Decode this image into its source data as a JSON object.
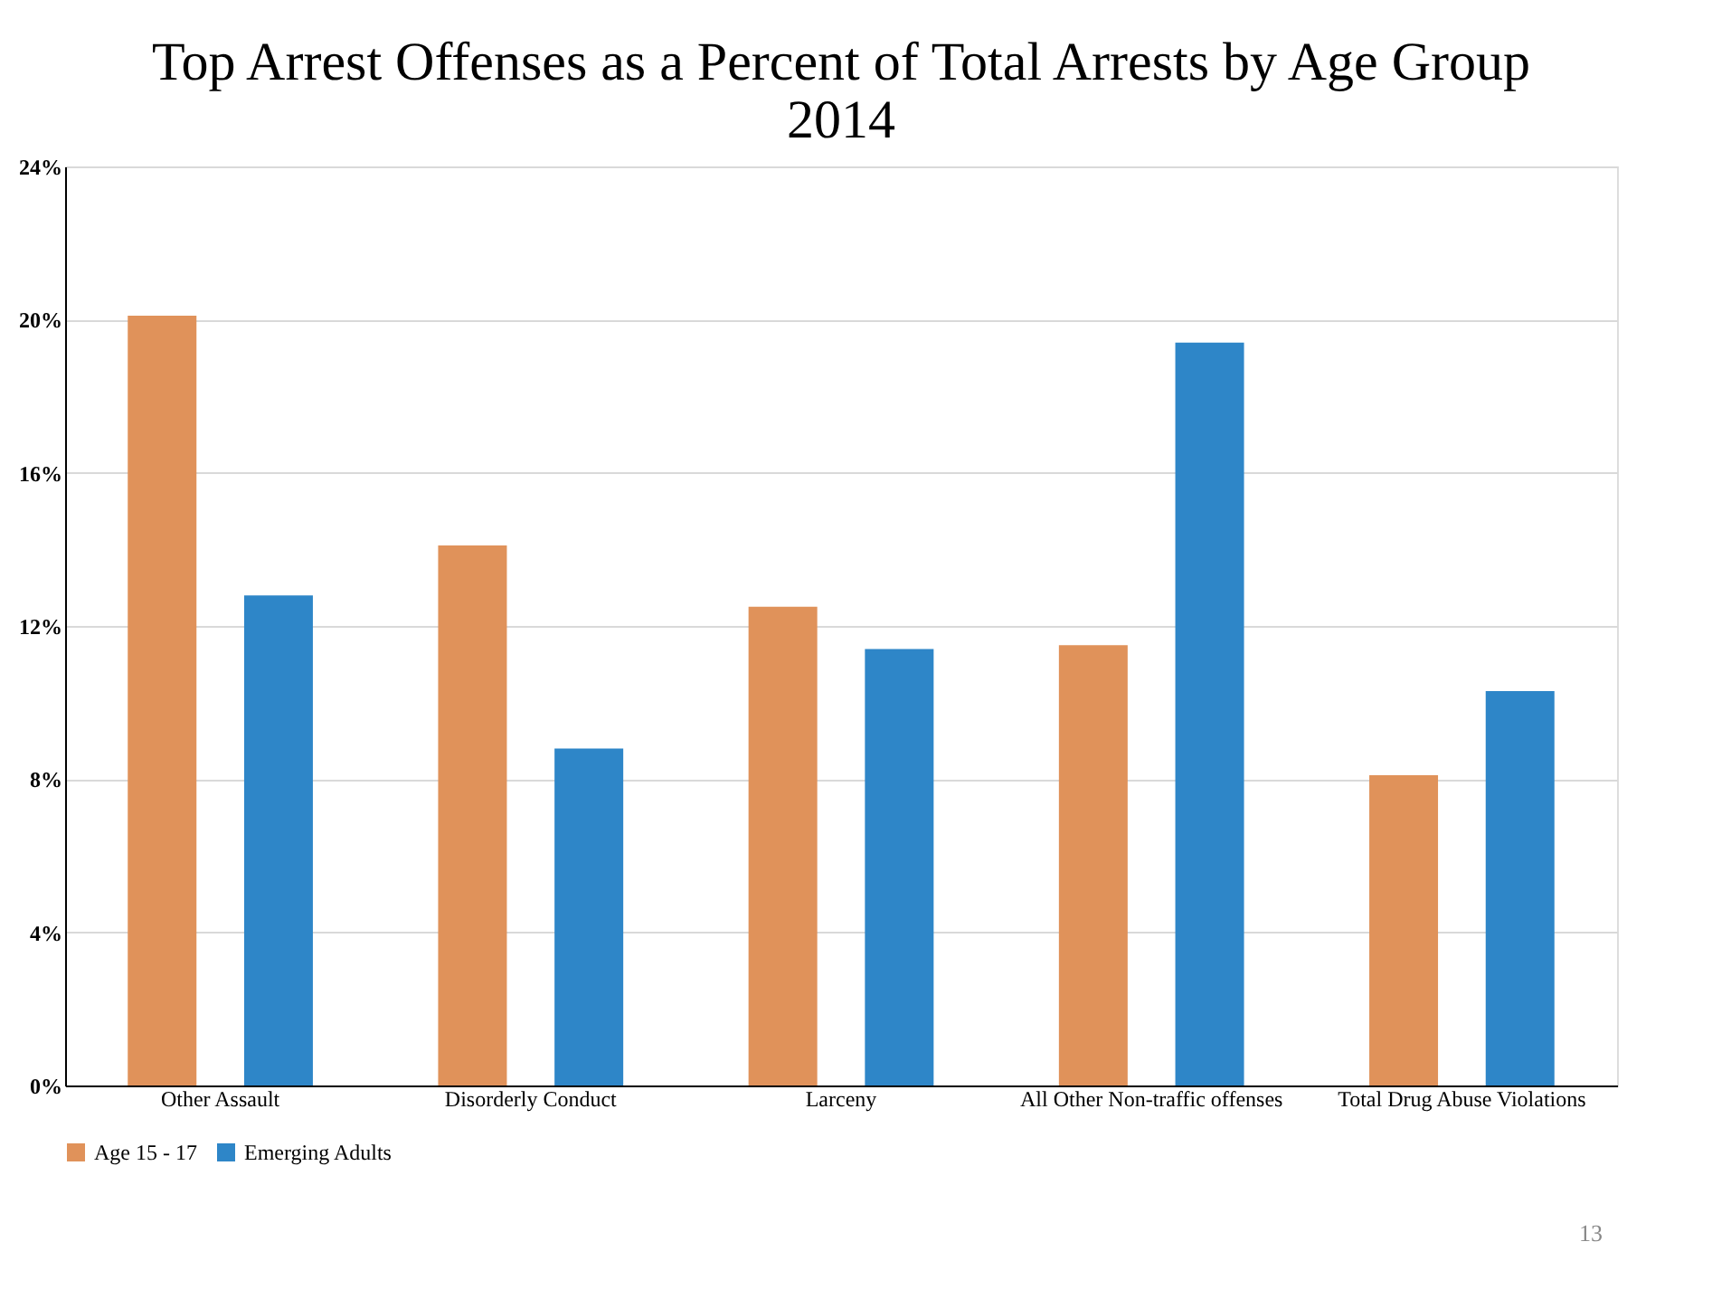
{
  "chart_data": {
    "type": "bar",
    "title": "Top Arrest Offenses as a Percent of Total Arrests by Age Group\n2014",
    "categories": [
      "Other Assault",
      "Disorderly Conduct",
      "Larceny",
      "All Other Non-traffic offenses",
      "Total Drug Abuse Violations"
    ],
    "series": [
      {
        "name": "Age 15 - 17",
        "color": "#e0925a",
        "values": [
          20.1,
          14.1,
          12.5,
          11.5,
          8.1
        ]
      },
      {
        "name": "Emerging Adults",
        "color": "#2e86c8",
        "values": [
          12.8,
          8.8,
          11.4,
          19.4,
          10.3
        ]
      }
    ],
    "ylim": [
      0,
      24
    ],
    "yticks": [
      {
        "value": 0,
        "label": "0%"
      },
      {
        "value": 4,
        "label": "4%"
      },
      {
        "value": 8,
        "label": "8%"
      },
      {
        "value": 12,
        "label": "12%"
      },
      {
        "value": 16,
        "label": "16%"
      },
      {
        "value": 20,
        "label": "20%"
      },
      {
        "value": 24,
        "label": "24%"
      }
    ],
    "grid": "y",
    "legend": "bottom",
    "annotations": [
      "13"
    ]
  }
}
